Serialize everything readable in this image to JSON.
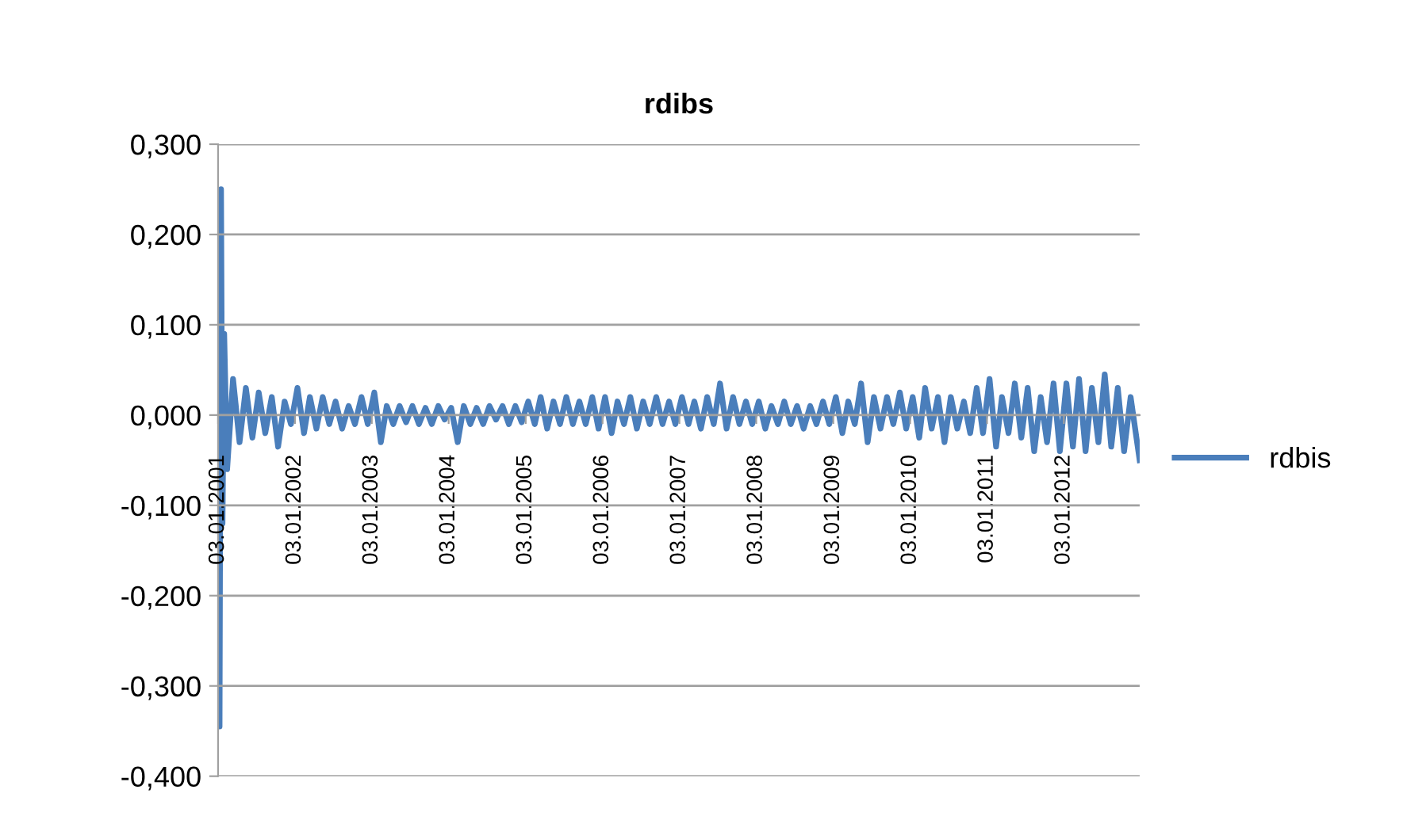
{
  "chart_data": {
    "type": "line",
    "title": "rdibs",
    "x": [
      "2001-01-03",
      "2001-01-10",
      "2001-01-17",
      "2001-01-24",
      "2001-02-01",
      "2001-02-15",
      "2001-03-15",
      "2001-04-15",
      "2001-05-15",
      "2001-06-15",
      "2001-07-15",
      "2001-08-15",
      "2001-09-15",
      "2001-10-15",
      "2001-11-15",
      "2001-12-15",
      "2002-01-15",
      "2002-02-15",
      "2002-03-15",
      "2002-04-15",
      "2002-05-15",
      "2002-06-15",
      "2002-07-15",
      "2002-08-15",
      "2002-09-15",
      "2002-10-15",
      "2002-11-15",
      "2002-12-15",
      "2003-01-15",
      "2003-02-15",
      "2003-03-15",
      "2003-04-15",
      "2003-05-15",
      "2003-06-15",
      "2003-07-15",
      "2003-08-15",
      "2003-09-15",
      "2003-10-15",
      "2003-11-15",
      "2003-12-15",
      "2004-01-15",
      "2004-02-15",
      "2004-03-15",
      "2004-04-15",
      "2004-05-15",
      "2004-06-15",
      "2004-07-15",
      "2004-08-15",
      "2004-09-15",
      "2004-10-15",
      "2004-11-15",
      "2004-12-15",
      "2005-01-15",
      "2005-02-15",
      "2005-03-15",
      "2005-04-15",
      "2005-05-15",
      "2005-06-15",
      "2005-07-15",
      "2005-08-15",
      "2005-09-15",
      "2005-10-15",
      "2005-11-15",
      "2005-12-15",
      "2006-01-15",
      "2006-02-15",
      "2006-03-15",
      "2006-04-15",
      "2006-05-15",
      "2006-06-15",
      "2006-07-15",
      "2006-08-15",
      "2006-09-15",
      "2006-10-15",
      "2006-11-15",
      "2006-12-15",
      "2007-01-15",
      "2007-02-15",
      "2007-03-15",
      "2007-04-15",
      "2007-05-15",
      "2007-06-15",
      "2007-07-15",
      "2007-08-15",
      "2007-09-15",
      "2007-10-15",
      "2007-11-15",
      "2007-12-15",
      "2008-01-15",
      "2008-02-15",
      "2008-03-15",
      "2008-04-15",
      "2008-05-15",
      "2008-06-15",
      "2008-07-15",
      "2008-08-15",
      "2008-09-15",
      "2008-10-15",
      "2008-11-15",
      "2008-12-15",
      "2009-01-15",
      "2009-02-15",
      "2009-03-15",
      "2009-04-15",
      "2009-05-15",
      "2009-06-15",
      "2009-07-15",
      "2009-08-15",
      "2009-09-15",
      "2009-10-15",
      "2009-11-15",
      "2009-12-15",
      "2010-01-15",
      "2010-02-15",
      "2010-03-15",
      "2010-04-15",
      "2010-05-15",
      "2010-06-15",
      "2010-07-15",
      "2010-08-15",
      "2010-09-15",
      "2010-10-15",
      "2010-11-15",
      "2010-12-15",
      "2011-01-15",
      "2011-02-15",
      "2011-03-15",
      "2011-04-15",
      "2011-05-15",
      "2011-06-15",
      "2011-07-15",
      "2011-08-15",
      "2011-09-15",
      "2011-10-15",
      "2011-11-15",
      "2011-12-15",
      "2012-01-15",
      "2012-02-15",
      "2012-03-15",
      "2012-04-15",
      "2012-05-15",
      "2012-06-15",
      "2012-07-15",
      "2012-08-15",
      "2012-09-15",
      "2012-10-15",
      "2012-11-15",
      "2012-12-28"
    ],
    "series": [
      {
        "name": "rdbis",
        "color": "#4a7ebb",
        "values": [
          0.02,
          -0.345,
          0.25,
          -0.12,
          0.09,
          -0.06,
          0.04,
          -0.03,
          0.03,
          -0.025,
          0.025,
          -0.02,
          0.02,
          -0.035,
          0.015,
          -0.01,
          0.03,
          -0.02,
          0.02,
          -0.015,
          0.02,
          -0.01,
          0.015,
          -0.015,
          0.01,
          -0.01,
          0.02,
          -0.01,
          0.025,
          -0.03,
          0.01,
          -0.01,
          0.01,
          -0.008,
          0.01,
          -0.01,
          0.008,
          -0.01,
          0.01,
          -0.005,
          0.008,
          -0.03,
          0.01,
          -0.01,
          0.008,
          -0.01,
          0.01,
          -0.005,
          0.01,
          -0.01,
          0.01,
          -0.008,
          0.015,
          -0.01,
          0.02,
          -0.015,
          0.015,
          -0.01,
          0.02,
          -0.01,
          0.015,
          -0.01,
          0.02,
          -0.015,
          0.02,
          -0.02,
          0.015,
          -0.01,
          0.02,
          -0.015,
          0.015,
          -0.01,
          0.02,
          -0.01,
          0.015,
          -0.01,
          0.02,
          -0.01,
          0.015,
          -0.015,
          0.02,
          -0.01,
          0.035,
          -0.015,
          0.02,
          -0.01,
          0.015,
          -0.01,
          0.015,
          -0.015,
          0.01,
          -0.01,
          0.015,
          -0.01,
          0.01,
          -0.015,
          0.01,
          -0.01,
          0.015,
          -0.01,
          0.02,
          -0.02,
          0.015,
          -0.01,
          0.035,
          -0.03,
          0.02,
          -0.015,
          0.02,
          -0.01,
          0.025,
          -0.015,
          0.02,
          -0.025,
          0.03,
          -0.015,
          0.02,
          -0.03,
          0.02,
          -0.015,
          0.015,
          -0.02,
          0.03,
          -0.02,
          0.04,
          -0.035,
          0.02,
          -0.02,
          0.035,
          -0.025,
          0.03,
          -0.04,
          0.02,
          -0.03,
          0.035,
          -0.04,
          0.035,
          -0.035,
          0.04,
          -0.04,
          0.03,
          -0.03,
          0.045,
          -0.035,
          0.03,
          -0.04,
          0.02,
          -0.05
        ]
      }
    ],
    "xlim": [
      "2001-01-03",
      "2012-12-28"
    ],
    "xticks": [
      {
        "value": "2001-01-03",
        "label": "03.01.2001"
      },
      {
        "value": "2002-01-03",
        "label": "03.01.2002"
      },
      {
        "value": "2003-01-03",
        "label": "03.01.2003"
      },
      {
        "value": "2004-01-03",
        "label": "03.01.2004"
      },
      {
        "value": "2005-01-03",
        "label": "03.01.2005"
      },
      {
        "value": "2006-01-03",
        "label": "03.01.2006"
      },
      {
        "value": "2007-01-03",
        "label": "03.01.2007"
      },
      {
        "value": "2008-01-03",
        "label": "03.01.2008"
      },
      {
        "value": "2009-01-03",
        "label": "03.01.2009"
      },
      {
        "value": "2010-01-03",
        "label": "03.01.2010"
      },
      {
        "value": "2011-01-03",
        "label": "03.01.2011"
      },
      {
        "value": "2012-01-03",
        "label": "03.01.2012"
      }
    ],
    "ylim": [
      -0.4,
      0.3
    ],
    "yticks": [
      {
        "value": -0.4,
        "label": "-0,400"
      },
      {
        "value": -0.3,
        "label": "-0,300"
      },
      {
        "value": -0.2,
        "label": "-0,200"
      },
      {
        "value": -0.1,
        "label": "-0,100"
      },
      {
        "value": 0,
        "label": "0,000"
      },
      {
        "value": 0.1,
        "label": "0,100"
      },
      {
        "value": 0.2,
        "label": "0,200"
      },
      {
        "value": 0.3,
        "label": "0,300"
      }
    ],
    "grid": "y",
    "legend": "right",
    "marker": "none",
    "line_style": "solid"
  }
}
